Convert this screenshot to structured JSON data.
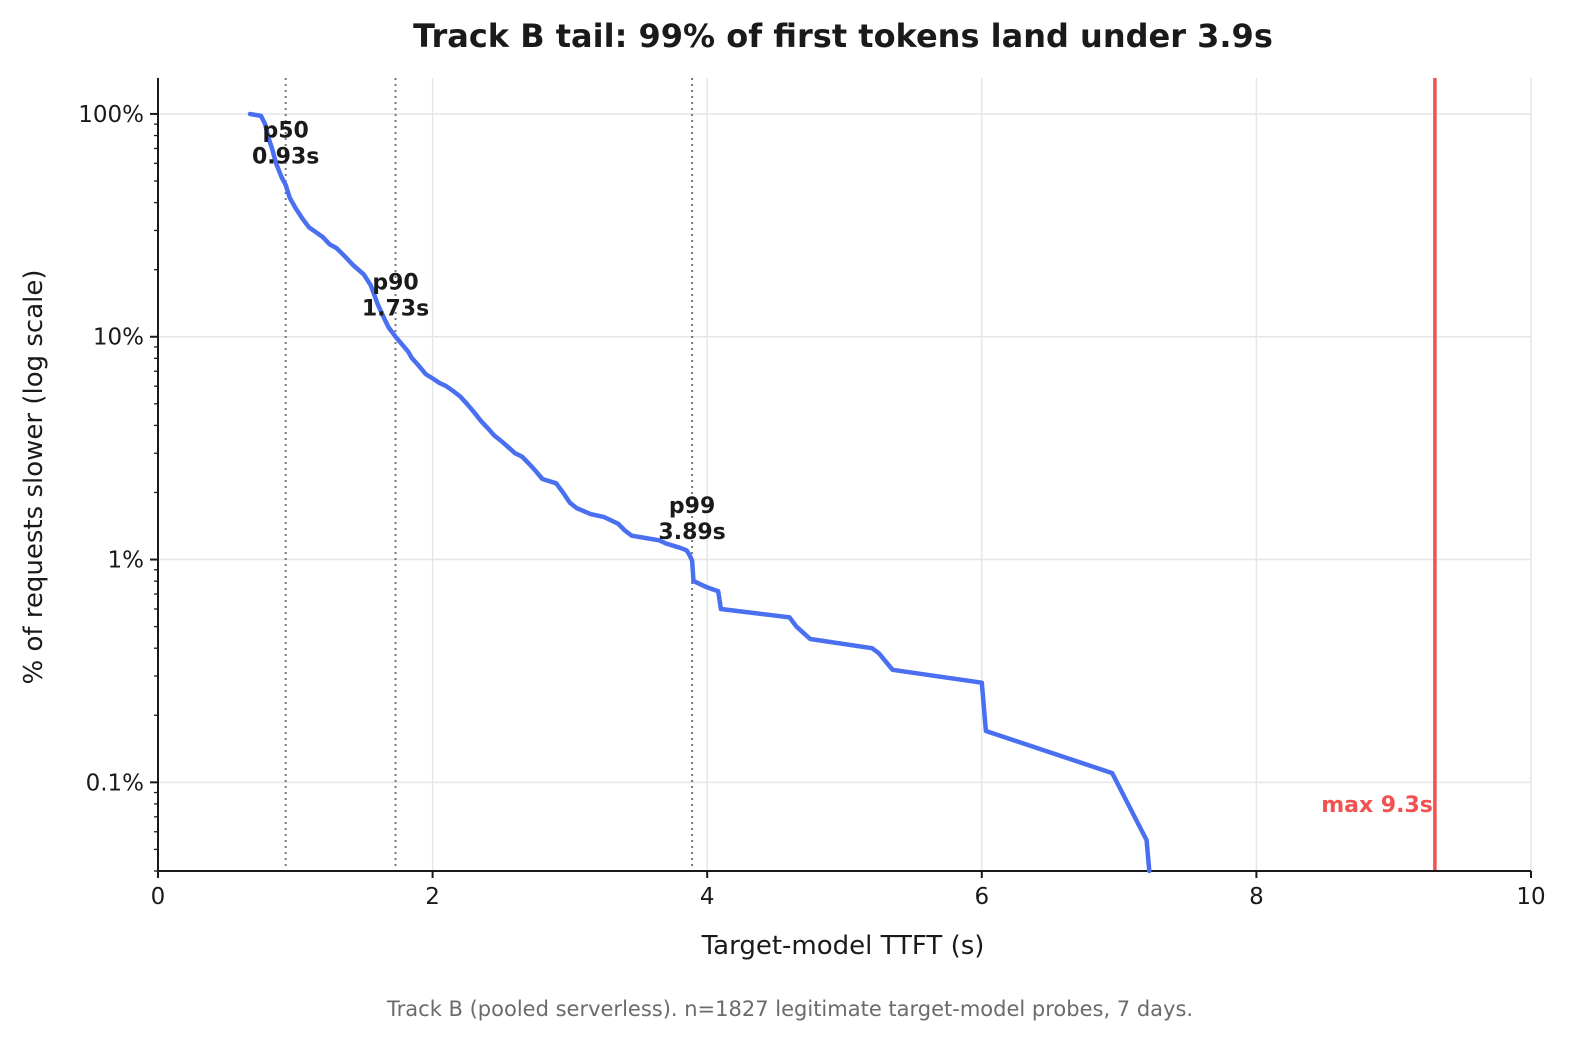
{
  "chart_data": {
    "type": "line",
    "title": "Track B tail: 99% of first tokens land under 3.9s",
    "xlabel": "Target-model TTFT (s)",
    "ylabel": "% of requests slower (log scale)",
    "caption": "Track B (pooled serverless). n=1827 legitimate target-model probes, 7 days.",
    "xlim": [
      0,
      10
    ],
    "ylim": [
      0.04,
      145
    ],
    "yscale": "log",
    "grid": true,
    "x_ticks": [
      0,
      2,
      4,
      6,
      8,
      10
    ],
    "x_tick_labels": [
      "0",
      "2",
      "4",
      "6",
      "8",
      "10"
    ],
    "y_ticks": [
      100,
      10,
      1,
      0.1
    ],
    "y_tick_labels": [
      "100%",
      "10%",
      "1%",
      "0.1%"
    ],
    "series": [
      {
        "color": "#4a6ff0",
        "x": [
          0.67,
          0.75,
          0.78,
          0.8,
          0.83,
          0.86,
          0.9,
          0.93,
          0.96,
          1.0,
          1.05,
          1.1,
          1.2,
          1.25,
          1.3,
          1.36,
          1.42,
          1.5,
          1.55,
          1.6,
          1.65,
          1.68,
          1.73,
          1.78,
          1.82,
          1.85,
          1.9,
          1.95,
          2.0,
          2.05,
          2.1,
          2.15,
          2.2,
          2.25,
          2.3,
          2.35,
          2.4,
          2.45,
          2.5,
          2.55,
          2.6,
          2.65,
          2.7,
          2.75,
          2.8,
          2.9,
          2.95,
          3.0,
          3.05,
          3.1,
          3.15,
          3.25,
          3.35,
          3.4,
          3.45,
          3.55,
          3.65,
          3.7,
          3.8,
          3.85,
          3.87,
          3.89,
          3.9,
          4.0,
          4.08,
          4.1,
          4.6,
          4.65,
          4.75,
          5.2,
          5.25,
          5.35,
          6.0,
          6.03,
          6.95,
          7.2,
          7.22
        ],
        "y": [
          100,
          98,
          90,
          80,
          70,
          60,
          52,
          48,
          42,
          38,
          34,
          31,
          28,
          26,
          25,
          23,
          21,
          19,
          17,
          14,
          12,
          11,
          10,
          9.2,
          8.6,
          8.0,
          7.4,
          6.8,
          6.5,
          6.2,
          6.0,
          5.7,
          5.4,
          5.0,
          4.6,
          4.2,
          3.9,
          3.6,
          3.4,
          3.2,
          3.0,
          2.9,
          2.7,
          2.5,
          2.3,
          2.2,
          2.0,
          1.8,
          1.7,
          1.65,
          1.6,
          1.55,
          1.45,
          1.35,
          1.28,
          1.25,
          1.22,
          1.18,
          1.13,
          1.1,
          1.05,
          0.99,
          0.8,
          0.75,
          0.72,
          0.6,
          0.55,
          0.5,
          0.44,
          0.4,
          0.38,
          0.32,
          0.28,
          0.17,
          0.11,
          0.055,
          0.04
        ]
      }
    ],
    "percentiles": [
      {
        "name": "p50",
        "value_label": "0.93s",
        "x": 0.93
      },
      {
        "name": "p90",
        "value_label": "1.73s",
        "x": 1.73
      },
      {
        "name": "p99",
        "value_label": "3.89s",
        "x": 3.89
      }
    ],
    "max_line": {
      "label": "max 9.3s",
      "x": 9.3,
      "color": "#f05252"
    }
  }
}
